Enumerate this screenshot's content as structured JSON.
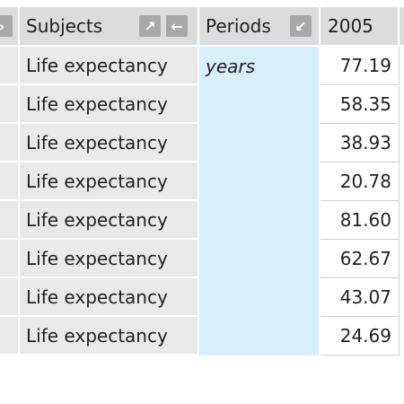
{
  "table": {
    "header": [
      "Subjects",
      "Periods",
      "2005"
    ],
    "rows": [
      [
        "Life expectancy",
        "years",
        "77.19"
      ],
      [
        "Life expectancy",
        null,
        "58.35"
      ],
      [
        "Life expectancy",
        null,
        "38.93"
      ],
      [
        "Life expectancy",
        null,
        "20.78"
      ],
      [
        "Life expectancy",
        null,
        "81.60"
      ],
      [
        "Life expectancy",
        null,
        "62.67"
      ],
      [
        "Life expectancy",
        null,
        "43.07"
      ],
      [
        "Life expectancy",
        null,
        "24.69"
      ]
    ]
  }
}
